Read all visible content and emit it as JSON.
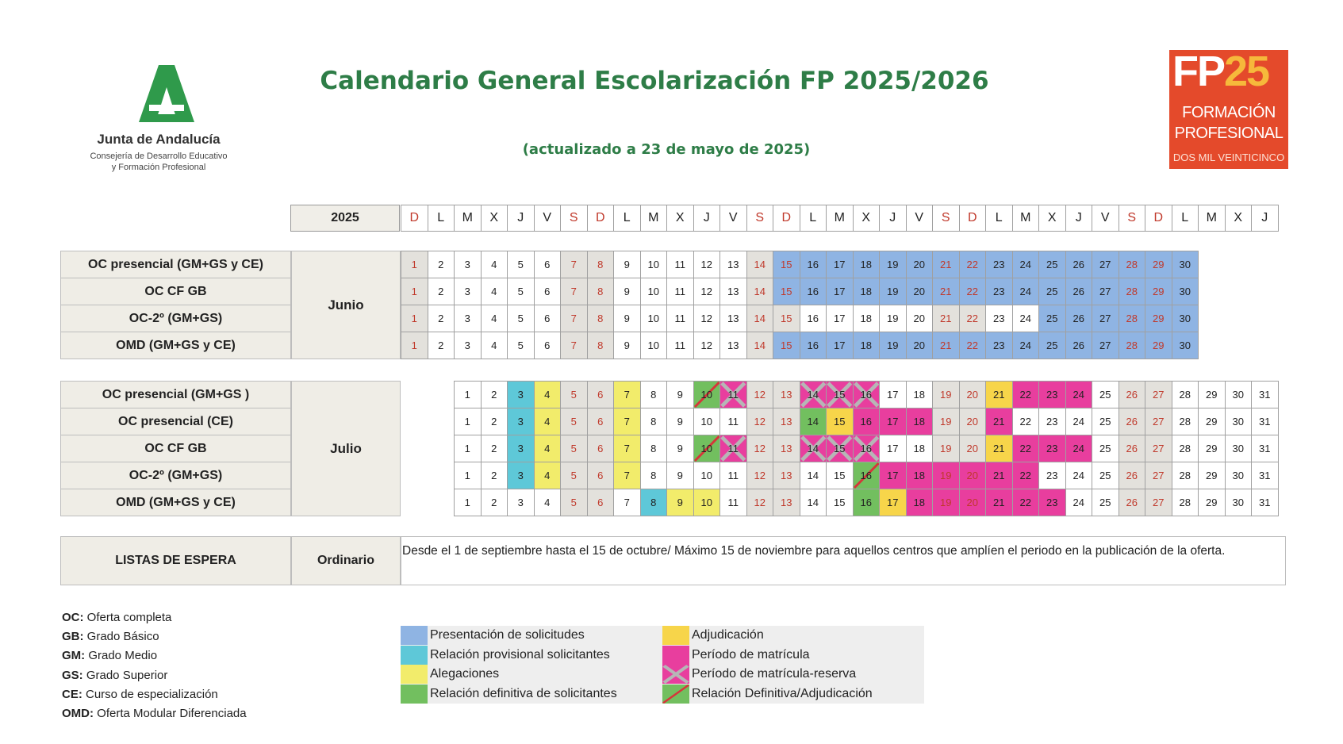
{
  "header": {
    "title": "Calendario General Escolarización FP 2025/2026",
    "subtitle": "(actualizado a 23 de mayo de 2025)",
    "org_name": "Junta de Andalucía",
    "org_sub_line1": "Consejería de Desarrollo Educativo",
    "org_sub_line2": "y Formación Profesional",
    "fp_logo_big_a": "FP",
    "fp_logo_big_b": "25",
    "fp_logo_line1": "FORMACIÓN",
    "fp_logo_line2": "PROFESIONAL",
    "fp_logo_line3": "DOS MIL VEINTICINCO"
  },
  "colors": {
    "presentacion": "#8fb4e3",
    "provisional": "#5ec8d8",
    "alegaciones": "#f2ec6b",
    "definitiva": "#72bf5f",
    "adjudicacion": "#f7d54a",
    "matricula": "#e83e9e",
    "weekend": "#e3e1dc",
    "green_title": "#2e7d47",
    "weekend_text": "#c0392b"
  },
  "calendar": {
    "year_label": "2025",
    "weekday_headers": [
      "D",
      "L",
      "M",
      "X",
      "J",
      "V",
      "S",
      "D",
      "L",
      "M",
      "X",
      "J",
      "V",
      "S",
      "D",
      "L",
      "M",
      "X",
      "J",
      "V",
      "S",
      "D",
      "L",
      "M",
      "X",
      "J",
      "V",
      "S",
      "D",
      "L",
      "M",
      "X",
      "J"
    ],
    "months": [
      {
        "name": "Junio",
        "start_col": 0,
        "days": 30,
        "weekend_days": [
          1,
          7,
          8,
          14,
          15,
          21,
          22,
          28,
          29
        ],
        "rows": [
          {
            "label": "OC presencial  (GM+GS y CE)",
            "marks": {
              "15": "presentacion",
              "16": "presentacion",
              "17": "presentacion",
              "18": "presentacion",
              "19": "presentacion",
              "20": "presentacion",
              "21": "presentacion",
              "22": "presentacion",
              "23": "presentacion",
              "24": "presentacion",
              "25": "presentacion",
              "26": "presentacion",
              "27": "presentacion",
              "28": "presentacion",
              "29": "presentacion",
              "30": "presentacion"
            }
          },
          {
            "label": "OC CF GB",
            "marks": {
              "15": "presentacion",
              "16": "presentacion",
              "17": "presentacion",
              "18": "presentacion",
              "19": "presentacion",
              "20": "presentacion",
              "21": "presentacion",
              "22": "presentacion",
              "23": "presentacion",
              "24": "presentacion",
              "25": "presentacion",
              "26": "presentacion",
              "27": "presentacion",
              "28": "presentacion",
              "29": "presentacion",
              "30": "presentacion"
            }
          },
          {
            "label": "OC-2º (GM+GS)",
            "marks": {
              "25": "presentacion",
              "26": "presentacion",
              "27": "presentacion",
              "28": "presentacion",
              "29": "presentacion",
              "30": "presentacion"
            }
          },
          {
            "label": "OMD (GM+GS y CE)",
            "marks": {
              "15": "presentacion",
              "16": "presentacion",
              "17": "presentacion",
              "18": "presentacion",
              "19": "presentacion",
              "20": "presentacion",
              "21": "presentacion",
              "22": "presentacion",
              "23": "presentacion",
              "24": "presentacion",
              "25": "presentacion",
              "26": "presentacion",
              "27": "presentacion",
              "28": "presentacion",
              "29": "presentacion",
              "30": "presentacion"
            }
          }
        ]
      },
      {
        "name": "Julio",
        "start_col": 2,
        "days": 31,
        "weekend_days": [
          5,
          6,
          12,
          13,
          19,
          20,
          26,
          27
        ],
        "rows": [
          {
            "label": "OC presencial  (GM+GS )",
            "marks": {
              "3": "provisional",
              "4": "alegaciones",
              "7": "alegaciones",
              "10": "def_adj",
              "11": "reserva",
              "14": "reserva",
              "15": "reserva",
              "16": "reserva",
              "21": "adjudicacion",
              "22": "matricula",
              "23": "matricula",
              "24": "matricula"
            }
          },
          {
            "label": "OC presencial (CE)",
            "marks": {
              "3": "provisional",
              "4": "alegaciones",
              "7": "alegaciones",
              "14": "definitiva",
              "15": "adjudicacion",
              "16": "matricula",
              "17": "matricula",
              "18": "matricula",
              "21": "matricula"
            }
          },
          {
            "label": "OC CF GB",
            "marks": {
              "3": "provisional",
              "4": "alegaciones",
              "7": "alegaciones",
              "10": "def_adj",
              "11": "reserva",
              "14": "reserva",
              "15": "reserva",
              "16": "reserva",
              "21": "adjudicacion",
              "22": "matricula",
              "23": "matricula",
              "24": "matricula"
            }
          },
          {
            "label": "OC-2º (GM+GS)",
            "marks": {
              "3": "provisional",
              "4": "alegaciones",
              "7": "alegaciones",
              "16": "def_adj",
              "17": "matricula",
              "18": "matricula",
              "19": "matricula",
              "20": "matricula",
              "21": "matricula",
              "22": "matricula"
            }
          },
          {
            "label": "OMD (GM+GS y CE)",
            "marks": {
              "8": "provisional",
              "9": "alegaciones",
              "10": "alegaciones",
              "16": "definitiva",
              "17": "adjudicacion",
              "18": "matricula",
              "19": "matricula",
              "20": "matricula",
              "21": "matricula",
              "22": "matricula",
              "23": "matricula"
            }
          }
        ]
      }
    ]
  },
  "waiting_list": {
    "label": "LISTAS DE ESPERA",
    "type": "Ordinario",
    "text": "Desde el 1 de septiembre hasta el 15 de octubre/ Máximo 15 de noviembre para aquellos centros que amplíen el periodo en la publicación de la oferta."
  },
  "abbreviations": [
    {
      "key": "OC:",
      "value": "Oferta completa"
    },
    {
      "key": "GB:",
      "value": "Grado Básico"
    },
    {
      "key": "GM:",
      "value": "Grado Medio"
    },
    {
      "key": "GS:",
      "value": "Grado Superior"
    },
    {
      "key": "CE:",
      "value": "Curso de especialización"
    },
    {
      "key": "OMD:",
      "value": "Oferta Modular Diferenciada"
    }
  ],
  "legend": [
    {
      "label": "Presentación de solicitudes",
      "style": "presentacion"
    },
    {
      "label": "Relación provisional solicitantes",
      "style": "provisional"
    },
    {
      "label": "Alegaciones",
      "style": "alegaciones"
    },
    {
      "label": "Relación definitiva de solicitantes",
      "style": "definitiva"
    },
    {
      "label": "Adjudicación",
      "style": "adjudicacion"
    },
    {
      "label": "Período de matrícula",
      "style": "matricula"
    },
    {
      "label": "Período de matrícula-reserva",
      "style": "reserva"
    },
    {
      "label": "Relación Definitiva/Adjudicación",
      "style": "def_adj"
    }
  ]
}
